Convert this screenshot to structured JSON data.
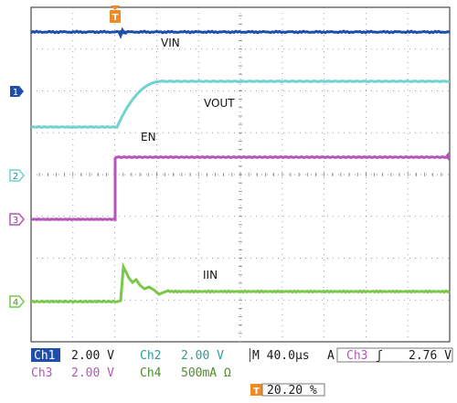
{
  "trigger_marker": "T",
  "waveform_labels": {
    "vin": "VIN",
    "vout": "VOUT",
    "en": "EN",
    "iin": "IIN"
  },
  "channel_markers": {
    "ch1": "1",
    "ch2": "2",
    "ch3": "3",
    "ch4": "4"
  },
  "status_bar": {
    "ch1_name": "Ch1",
    "ch1_scale": "2.00 V",
    "ch2_name": "Ch2",
    "ch2_scale": "2.00 V",
    "timebase": "M 40.0µs",
    "trigger_mode": "A",
    "trigger_source": "Ch3",
    "trigger_slope": "ʃ",
    "trigger_level": "2.76 V",
    "ch3_name": "Ch3",
    "ch3_scale": "2.00 V",
    "ch4_name": "Ch4",
    "ch4_scale": "500mA Ω",
    "trigger_position": "20.20 %"
  },
  "colors": {
    "ch1": "#1f4fa8",
    "ch2": "#6fd3d0",
    "ch3": "#b455b8",
    "ch4": "#78c84a",
    "grid": "#7a7a7a",
    "trigger": "#f08a24"
  }
}
